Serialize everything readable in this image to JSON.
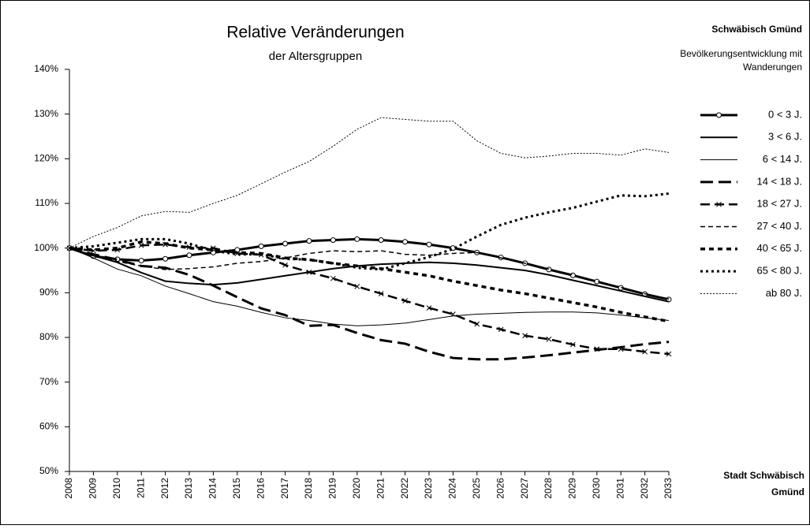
{
  "chart_data": {
    "type": "line",
    "title": "Relative Veränderungen",
    "subtitle": "der Altersgruppen",
    "annotations": [
      "Schwäbisch Gmünd",
      "Bevölkerungsentwicklung mit",
      "Wanderungen",
      "Stadt Schwäbisch",
      "Gmünd"
    ],
    "categories": [
      "2008",
      "2009",
      "2010",
      "2011",
      "2012",
      "2013",
      "2014",
      "2015",
      "2016",
      "2017",
      "2018",
      "2019",
      "2020",
      "2021",
      "2022",
      "2023",
      "2024",
      "2025",
      "2026",
      "2027",
      "2028",
      "2029",
      "2030",
      "2031",
      "2032",
      "2033"
    ],
    "ylim": [
      50,
      140
    ],
    "yticks": [
      {
        "value": 50,
        "label": "50%"
      },
      {
        "value": 60,
        "label": "60%"
      },
      {
        "value": 70,
        "label": "70%"
      },
      {
        "value": 80,
        "label": "80%"
      },
      {
        "value": 90,
        "label": "90%"
      },
      {
        "value": 100,
        "label": "100%"
      },
      {
        "value": 110,
        "label": "110%"
      },
      {
        "value": 120,
        "label": "120%"
      },
      {
        "value": 130,
        "label": "130%"
      },
      {
        "value": 140,
        "label": "140%"
      }
    ],
    "grid": false,
    "legend": "right",
    "series": [
      {
        "name": "0 < 3 J.",
        "color": "#000000",
        "values": [
          100,
          98.2,
          97.5,
          97.2,
          97.6,
          98.4,
          99.0,
          99.6,
          100.4,
          101.0,
          101.6,
          101.8,
          102.0,
          101.8,
          101.4,
          100.8,
          100.0,
          99.0,
          97.9,
          96.6,
          95.2,
          93.9,
          92.5,
          91.1,
          89.7,
          88.5
        ]
      },
      {
        "name": "3 < 6 J.",
        "color": "#000000",
        "values": [
          100,
          98.3,
          96.8,
          94.5,
          92.6,
          92.1,
          91.8,
          92.2,
          93.0,
          93.8,
          94.6,
          95.4,
          96.0,
          96.4,
          96.6,
          96.8,
          96.6,
          96.2,
          95.6,
          95.0,
          94.0,
          92.8,
          91.6,
          90.4,
          89.2,
          88.0
        ]
      },
      {
        "name": "6 < 14 J.",
        "color": "#000000",
        "values": [
          100,
          97.8,
          95.3,
          93.8,
          91.5,
          89.8,
          88.0,
          87.0,
          85.6,
          84.4,
          83.8,
          83.0,
          82.6,
          82.8,
          83.2,
          84.0,
          84.8,
          85.2,
          85.4,
          85.6,
          85.7,
          85.7,
          85.5,
          85.0,
          84.4,
          83.8
        ]
      },
      {
        "name": "14 < 18 J.",
        "color": "#000000",
        "values": [
          100,
          98.6,
          97.4,
          96.0,
          95.6,
          94.0,
          91.6,
          89.0,
          86.5,
          85.0,
          82.6,
          82.8,
          81.0,
          79.4,
          78.6,
          76.8,
          75.4,
          75.1,
          75.1,
          75.5,
          76.0,
          76.6,
          77.2,
          77.8,
          78.5,
          79.0
        ]
      },
      {
        "name": "18 < 27 J.",
        "color": "#000000",
        "values": [
          100,
          99.4,
          99.6,
          100.6,
          100.8,
          100.2,
          100.0,
          98.8,
          98.5,
          96.2,
          94.6,
          93.2,
          91.4,
          89.8,
          88.2,
          86.6,
          85.2,
          83.0,
          81.8,
          80.4,
          79.6,
          78.4,
          77.4,
          77.4,
          76.8,
          76.3
        ]
      },
      {
        "name": "27 < 40 J.",
        "color": "#000000",
        "values": [
          100,
          98.4,
          97.0,
          96.0,
          95.2,
          95.4,
          95.8,
          96.6,
          97.0,
          97.8,
          98.8,
          99.4,
          99.2,
          99.4,
          98.6,
          98.4,
          98.8,
          99.0,
          97.8,
          96.6,
          95.3,
          94.0,
          92.6,
          91.2,
          89.8,
          88.6
        ]
      },
      {
        "name": "40 < 65 J.",
        "color": "#000000",
        "values": [
          100,
          99.6,
          100.0,
          101.4,
          101.0,
          100.0,
          99.6,
          99.0,
          98.8,
          97.8,
          97.4,
          96.6,
          96.0,
          95.4,
          94.6,
          93.8,
          92.6,
          91.6,
          90.6,
          89.8,
          88.8,
          87.8,
          86.8,
          85.6,
          84.6,
          83.6
        ]
      },
      {
        "name": "65 < 80 J.",
        "color": "#000000",
        "values": [
          100,
          100.4,
          101.2,
          102.0,
          102.0,
          101.0,
          99.4,
          98.6,
          98.6,
          97.6,
          97.4,
          96.6,
          95.6,
          95.2,
          96.6,
          98.0,
          99.8,
          102.6,
          105.2,
          106.8,
          108.0,
          109.0,
          110.4,
          111.8,
          111.6,
          112.2
        ]
      },
      {
        "name": "ab 80 J.",
        "color": "#000000",
        "values": [
          100,
          102.6,
          104.6,
          107.2,
          108.2,
          108.0,
          110.0,
          111.8,
          114.4,
          117.0,
          119.4,
          122.8,
          126.6,
          129.2,
          128.8,
          128.4,
          128.4,
          124.0,
          121.2,
          120.2,
          120.6,
          121.2,
          121.2,
          120.8,
          122.2,
          121.4
        ]
      }
    ]
  }
}
